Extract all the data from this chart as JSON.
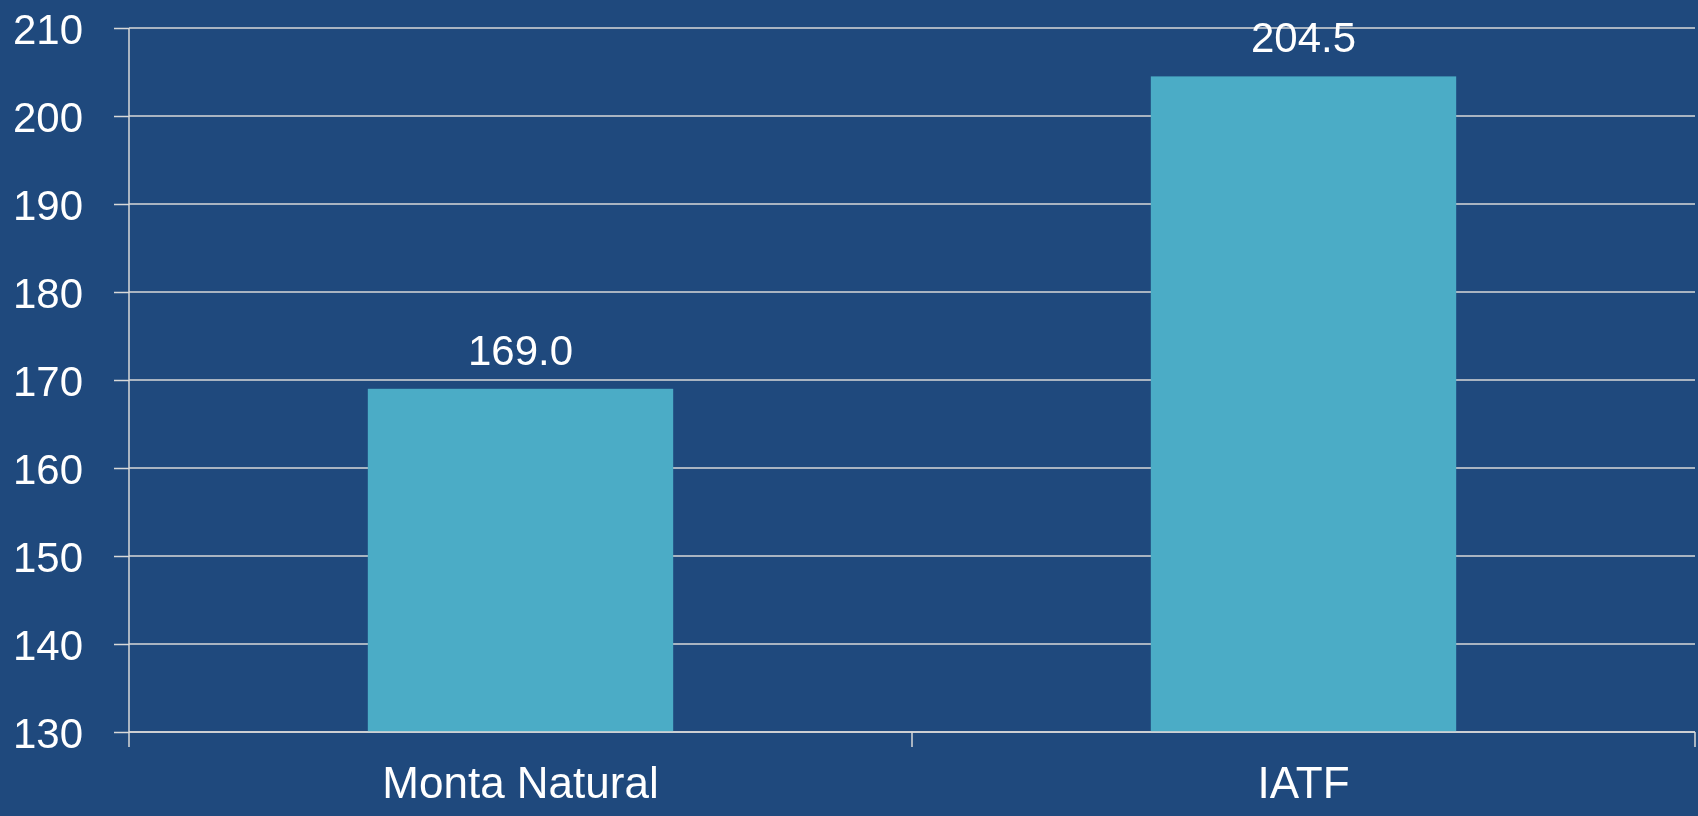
{
  "chart_data": {
    "type": "bar",
    "categories": [
      "Monta Natural",
      "IATF"
    ],
    "values": [
      169.0,
      204.5
    ],
    "value_labels": [
      "169.0",
      "204.5"
    ],
    "color": "#4bacc6",
    "ylim": [
      130,
      210
    ],
    "yticks": [
      130,
      140,
      150,
      160,
      170,
      180,
      190,
      200,
      210
    ],
    "grid": "y"
  }
}
